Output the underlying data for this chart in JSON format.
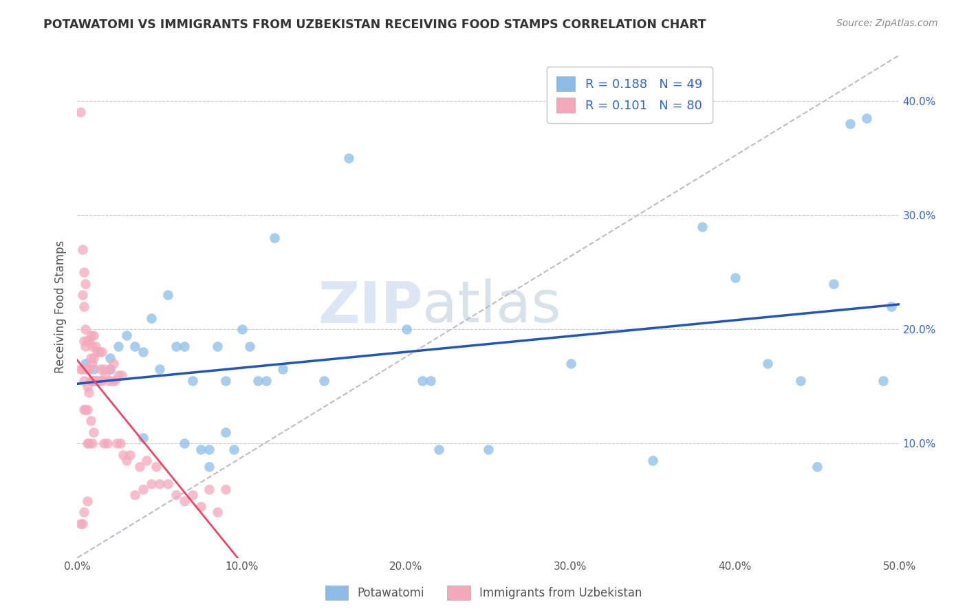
{
  "title": "POTAWATOMI VS IMMIGRANTS FROM UZBEKISTAN RECEIVING FOOD STAMPS CORRELATION CHART",
  "source": "Source: ZipAtlas.com",
  "ylabel": "Receiving Food Stamps",
  "xlim": [
    0.0,
    0.5
  ],
  "ylim": [
    0.0,
    0.44
  ],
  "xticks": [
    0.0,
    0.1,
    0.2,
    0.3,
    0.4,
    0.5
  ],
  "xticklabels": [
    "0.0%",
    "10.0%",
    "20.0%",
    "30.0%",
    "40.0%",
    "50.0%"
  ],
  "yticks": [
    0.0,
    0.1,
    0.2,
    0.3,
    0.4
  ],
  "yticklabels_right": [
    "",
    "10.0%",
    "20.0%",
    "30.0%",
    "40.0%"
  ],
  "blue_color": "#8BBDE8",
  "pink_color": "#F4A8BC",
  "blue_line_color": "#2255BB",
  "pink_line_color": "#EE4466",
  "diag_color": "#BBBBCC",
  "R_blue": 0.188,
  "N_blue": 49,
  "R_pink": 0.101,
  "N_pink": 80,
  "legend_label_blue": "Potawatomi",
  "legend_label_pink": "Immigrants from Uzbekistan",
  "watermark_zip": "ZIP",
  "watermark_atlas": "atlas",
  "blue_x": [
    0.005,
    0.01,
    0.01,
    0.02,
    0.02,
    0.025,
    0.03,
    0.035,
    0.04,
    0.04,
    0.045,
    0.05,
    0.055,
    0.06,
    0.065,
    0.065,
    0.07,
    0.075,
    0.08,
    0.08,
    0.085,
    0.09,
    0.09,
    0.095,
    0.1,
    0.105,
    0.11,
    0.115,
    0.12,
    0.125,
    0.15,
    0.165,
    0.2,
    0.21,
    0.215,
    0.22,
    0.25,
    0.3,
    0.35,
    0.38,
    0.4,
    0.42,
    0.44,
    0.45,
    0.46,
    0.47,
    0.48,
    0.49,
    0.495
  ],
  "blue_y": [
    0.17,
    0.165,
    0.155,
    0.175,
    0.165,
    0.185,
    0.195,
    0.185,
    0.18,
    0.105,
    0.21,
    0.165,
    0.23,
    0.185,
    0.185,
    0.1,
    0.155,
    0.095,
    0.095,
    0.08,
    0.185,
    0.155,
    0.11,
    0.095,
    0.2,
    0.185,
    0.155,
    0.155,
    0.28,
    0.165,
    0.155,
    0.35,
    0.2,
    0.155,
    0.155,
    0.095,
    0.095,
    0.17,
    0.085,
    0.29,
    0.245,
    0.17,
    0.155,
    0.08,
    0.24,
    0.38,
    0.385,
    0.155,
    0.22
  ],
  "pink_x": [
    0.002,
    0.002,
    0.002,
    0.003,
    0.003,
    0.003,
    0.003,
    0.004,
    0.004,
    0.004,
    0.004,
    0.004,
    0.004,
    0.005,
    0.005,
    0.005,
    0.005,
    0.005,
    0.006,
    0.006,
    0.006,
    0.006,
    0.006,
    0.006,
    0.007,
    0.007,
    0.007,
    0.007,
    0.008,
    0.008,
    0.008,
    0.008,
    0.009,
    0.009,
    0.009,
    0.009,
    0.01,
    0.01,
    0.01,
    0.01,
    0.011,
    0.011,
    0.012,
    0.012,
    0.013,
    0.013,
    0.014,
    0.015,
    0.015,
    0.016,
    0.016,
    0.017,
    0.018,
    0.019,
    0.02,
    0.021,
    0.022,
    0.023,
    0.024,
    0.025,
    0.026,
    0.027,
    0.028,
    0.03,
    0.032,
    0.035,
    0.038,
    0.04,
    0.042,
    0.045,
    0.048,
    0.05,
    0.055,
    0.06,
    0.065,
    0.07,
    0.075,
    0.08,
    0.085,
    0.09
  ],
  "pink_y": [
    0.39,
    0.165,
    0.03,
    0.27,
    0.23,
    0.165,
    0.03,
    0.25,
    0.22,
    0.19,
    0.155,
    0.13,
    0.04,
    0.24,
    0.2,
    0.185,
    0.165,
    0.13,
    0.19,
    0.165,
    0.15,
    0.13,
    0.1,
    0.05,
    0.19,
    0.165,
    0.145,
    0.1,
    0.195,
    0.175,
    0.155,
    0.12,
    0.185,
    0.17,
    0.155,
    0.1,
    0.195,
    0.175,
    0.155,
    0.11,
    0.185,
    0.155,
    0.18,
    0.155,
    0.18,
    0.155,
    0.165,
    0.18,
    0.155,
    0.165,
    0.1,
    0.16,
    0.1,
    0.155,
    0.165,
    0.155,
    0.17,
    0.155,
    0.1,
    0.16,
    0.1,
    0.16,
    0.09,
    0.085,
    0.09,
    0.055,
    0.08,
    0.06,
    0.085,
    0.065,
    0.08,
    0.065,
    0.065,
    0.055,
    0.05,
    0.055,
    0.045,
    0.06,
    0.04,
    0.06
  ]
}
